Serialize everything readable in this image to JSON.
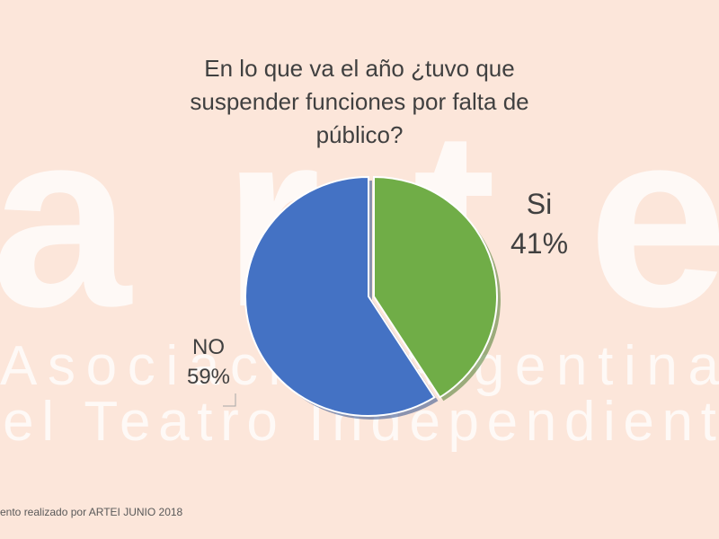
{
  "chart_data": {
    "type": "pie",
    "title": "En lo que va el año ¿tuvo que\nsuspender funciones por falta de\npúblico?",
    "slices": [
      {
        "label": "Si",
        "value": 41,
        "value_label": "41%",
        "color": "#70ad47"
      },
      {
        "label": "NO",
        "value": 59,
        "value_label": "59%",
        "color": "#4472c4"
      }
    ],
    "legend": "none"
  },
  "watermark": {
    "logo_text": "arte",
    "line1": "Asociación Argentina",
    "line2": "del Teatro Independiente"
  },
  "footer": {
    "text": "ento realizado por ARTEI JUNIO 2018"
  }
}
